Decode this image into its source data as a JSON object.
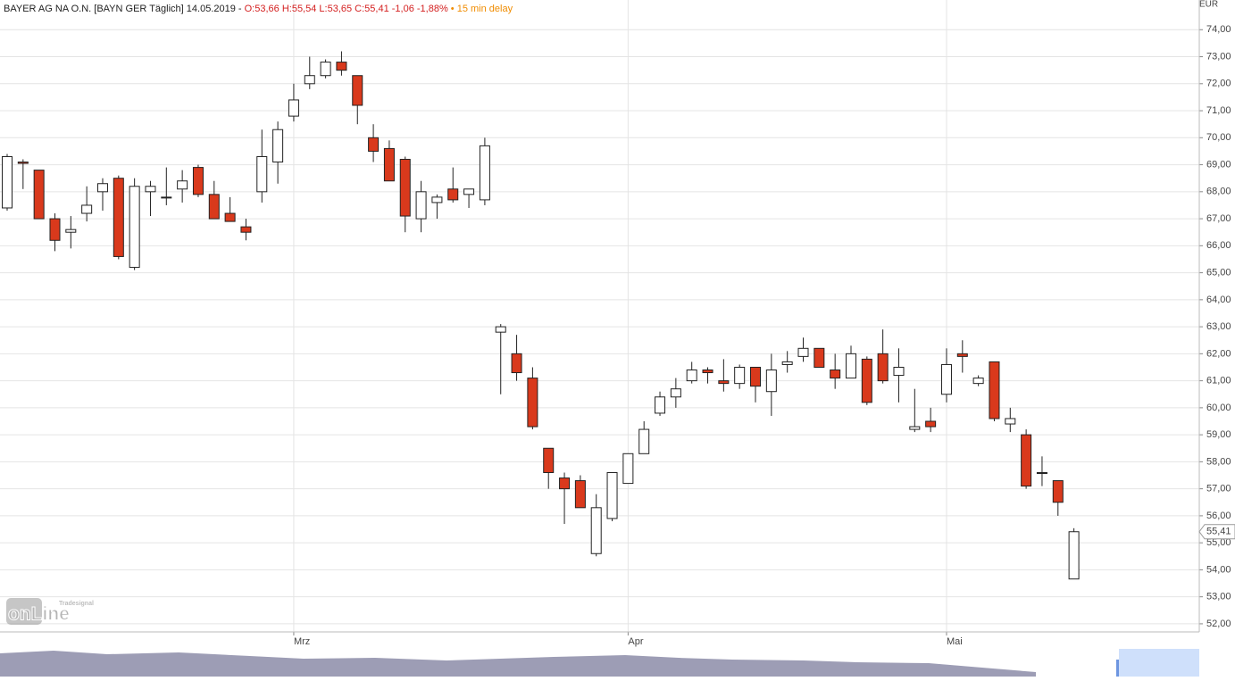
{
  "header": {
    "title": "BAYER AG NA O.N. [BAYN GER Täglich] 14.05.2019 -",
    "quote": "O:53,66 H:55,54 L:53,65 C:55,41 -1,06 -1,88%",
    "delay": "• 15 min delay"
  },
  "watermark": {
    "brand": "Tradesignal",
    "logo": "onLine"
  },
  "chart_data": {
    "type": "candlestick",
    "y_unit": "EUR",
    "categories": [
      null,
      null,
      null,
      null,
      null,
      null,
      null,
      null,
      null,
      null,
      null,
      null,
      null,
      null,
      null,
      null,
      null,
      null,
      "Mrz",
      null,
      null,
      null,
      null,
      null,
      null,
      null,
      null,
      null,
      null,
      null,
      null,
      null,
      null,
      null,
      null,
      null,
      null,
      null,
      null,
      "Apr",
      null,
      null,
      null,
      null,
      null,
      null,
      null,
      null,
      null,
      null,
      null,
      null,
      null,
      null,
      null,
      null,
      null,
      null,
      null,
      "Mai",
      null,
      null,
      null,
      null,
      null,
      null,
      null,
      null
    ],
    "series": [
      {
        "name": "BAYER AG NA O.N.",
        "up_color": "#ffffff",
        "down_color": "#d9391c",
        "open": [
          67.4,
          69.1,
          68.8,
          67.0,
          66.5,
          67.2,
          68.0,
          68.5,
          65.2,
          68.0,
          67.8,
          68.1,
          68.9,
          67.9,
          67.2,
          66.7,
          68.0,
          69.1,
          70.8,
          72.0,
          72.3,
          72.8,
          72.3,
          70.0,
          69.6,
          69.2,
          67.0,
          67.6,
          68.1,
          67.9,
          67.7,
          62.8,
          62.0,
          61.1,
          58.5,
          57.4,
          57.3,
          54.6,
          55.9,
          57.2,
          58.3,
          59.8,
          60.4,
          61.0,
          61.4,
          61.0,
          60.9,
          61.5,
          60.6,
          61.6,
          61.9,
          62.2,
          61.4,
          61.1,
          61.8,
          62.0,
          61.2,
          59.2,
          59.5,
          60.5,
          62.0,
          60.9,
          61.7,
          59.4,
          59.0,
          57.6,
          57.3,
          53.66
        ],
        "high": [
          69.4,
          69.2,
          68.8,
          67.2,
          67.1,
          68.2,
          68.5,
          68.6,
          68.5,
          68.4,
          68.9,
          68.8,
          69.0,
          68.4,
          67.8,
          67.0,
          70.3,
          70.6,
          72.0,
          73.0,
          72.9,
          73.2,
          72.3,
          70.5,
          69.9,
          69.3,
          68.4,
          67.9,
          68.9,
          68.1,
          70.0,
          63.1,
          62.7,
          61.5,
          58.5,
          57.6,
          57.5,
          56.8,
          57.6,
          58.3,
          59.5,
          60.6,
          61.1,
          61.7,
          61.5,
          61.8,
          61.6,
          61.5,
          62.0,
          62.1,
          62.6,
          62.2,
          62.0,
          62.3,
          61.9,
          62.9,
          62.2,
          60.7,
          60.0,
          62.2,
          62.5,
          61.2,
          61.7,
          60.0,
          59.2,
          58.2,
          57.3,
          55.54
        ],
        "low": [
          67.3,
          68.1,
          67.0,
          65.8,
          65.9,
          66.9,
          67.3,
          65.5,
          65.1,
          67.1,
          67.5,
          67.6,
          67.8,
          67.0,
          66.9,
          66.2,
          67.6,
          68.3,
          70.6,
          71.8,
          72.2,
          72.3,
          70.5,
          69.1,
          68.4,
          66.5,
          66.5,
          67.0,
          67.6,
          67.4,
          67.5,
          60.5,
          61.0,
          59.2,
          57.0,
          55.7,
          56.3,
          54.5,
          55.8,
          57.2,
          58.3,
          59.7,
          60.0,
          60.9,
          60.9,
          60.6,
          60.7,
          60.2,
          59.7,
          61.3,
          61.7,
          61.5,
          60.7,
          61.1,
          60.1,
          60.9,
          60.2,
          59.1,
          59.1,
          60.2,
          61.3,
          60.8,
          59.5,
          59.1,
          57.0,
          57.1,
          56.0,
          53.65
        ],
        "close": [
          69.3,
          69.05,
          67.0,
          66.2,
          66.6,
          67.5,
          68.3,
          65.6,
          68.2,
          68.2,
          67.8,
          68.4,
          67.9,
          67.0,
          66.9,
          66.5,
          69.3,
          70.3,
          71.4,
          72.3,
          72.8,
          72.5,
          71.2,
          69.5,
          68.4,
          67.1,
          68.0,
          67.8,
          67.7,
          68.1,
          69.7,
          63.0,
          61.3,
          59.3,
          57.6,
          57.0,
          56.3,
          56.3,
          57.6,
          58.3,
          59.2,
          60.4,
          60.7,
          61.4,
          61.3,
          60.9,
          61.5,
          60.8,
          61.4,
          61.7,
          62.2,
          61.5,
          61.1,
          62.0,
          60.2,
          61.0,
          61.5,
          59.3,
          59.3,
          61.6,
          61.9,
          61.1,
          59.6,
          59.6,
          57.1,
          57.6,
          56.5,
          55.41
        ]
      }
    ],
    "last_price": {
      "value": 55.41,
      "label": "55,41"
    },
    "ylim": [
      51.7,
      75.1
    ],
    "yticks": [
      {
        "value": 52,
        "label": "52,00"
      },
      {
        "value": 53,
        "label": "53,00"
      },
      {
        "value": 54,
        "label": "54,00"
      },
      {
        "value": 55,
        "label": "55,00"
      },
      {
        "value": 56,
        "label": "56,00"
      },
      {
        "value": 57,
        "label": "57,00"
      },
      {
        "value": 58,
        "label": "58,00"
      },
      {
        "value": 59,
        "label": "59,00"
      },
      {
        "value": 60,
        "label": "60,00"
      },
      {
        "value": 61,
        "label": "61,00"
      },
      {
        "value": 62,
        "label": "62,00"
      },
      {
        "value": 63,
        "label": "63,00"
      },
      {
        "value": 64,
        "label": "64,00"
      },
      {
        "value": 65,
        "label": "65,00"
      },
      {
        "value": 66,
        "label": "66,00"
      },
      {
        "value": 67,
        "label": "67,00"
      },
      {
        "value": 68,
        "label": "68,00"
      },
      {
        "value": 69,
        "label": "69,00"
      },
      {
        "value": 70,
        "label": "70,00"
      },
      {
        "value": 71,
        "label": "71,00"
      },
      {
        "value": 72,
        "label": "72,00"
      },
      {
        "value": 73,
        "label": "73,00"
      },
      {
        "value": 74,
        "label": "74,00"
      }
    ],
    "grid": true
  }
}
